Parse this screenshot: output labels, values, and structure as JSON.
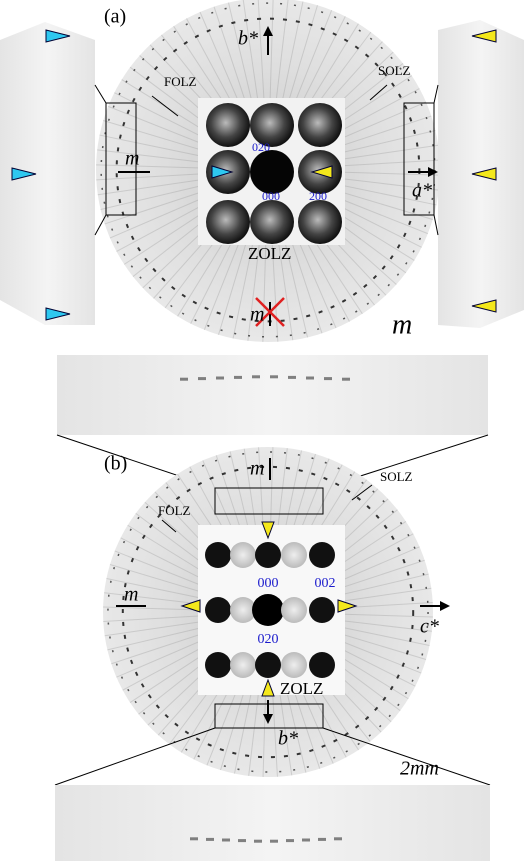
{
  "panel_a": {
    "label": "(a)",
    "b_axis": "b*",
    "solz": "SOLZ",
    "folz": "FOLZ",
    "mirror_left": "m",
    "index_020": "020",
    "index_000": "000",
    "index_200": "200",
    "a_axis": "a*",
    "zolz": "ZOLZ",
    "mirror_bottom": "m",
    "mirror_large": "m"
  },
  "panel_b": {
    "label": "(b)",
    "mirror_top": "m",
    "solz": "SOLZ",
    "folz": "FOLZ",
    "mirror_left": "m",
    "index_000": "000",
    "index_002": "002",
    "c_axis": "c*",
    "index_020": "020",
    "zolz": "ZOLZ",
    "b_axis": "b*",
    "scale": "2mm"
  }
}
